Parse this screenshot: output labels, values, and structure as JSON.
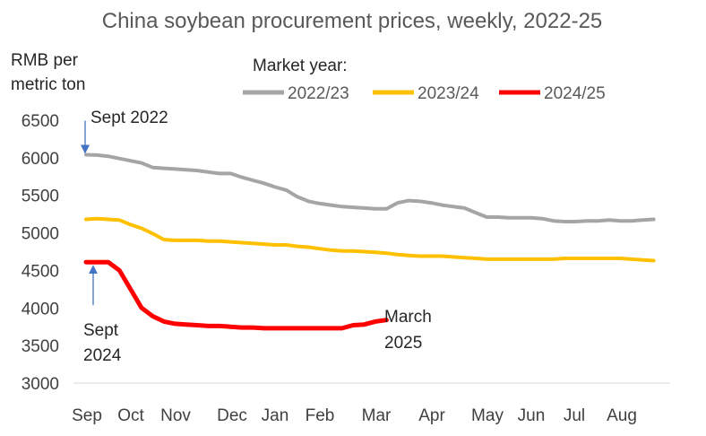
{
  "chart_data": {
    "type": "line",
    "title": "China soybean procurement prices, weekly, 2022-25",
    "ylabel": [
      "RMB per",
      "metric ton"
    ],
    "legend_title": "Market year:",
    "legend_position": "top",
    "ylim": [
      3000,
      6500
    ],
    "yticks": [
      3000,
      3500,
      4000,
      4500,
      5000,
      5500,
      6000,
      6500
    ],
    "grid": false,
    "month_labels": [
      "Sep",
      "Oct",
      "Nov",
      "Dec",
      "Jan",
      "Feb",
      "Mar",
      "Apr",
      "May",
      "Jun",
      "Jul",
      "Aug"
    ],
    "x_unit": "week of market year",
    "xlim": [
      0,
      52
    ],
    "series": [
      {
        "name": "2022/23",
        "color": "#A5A5A5",
        "points": [
          [
            0,
            6040
          ],
          [
            1,
            6035
          ],
          [
            2,
            6020
          ],
          [
            3,
            5990
          ],
          [
            4,
            5960
          ],
          [
            5,
            5930
          ],
          [
            6,
            5870
          ],
          [
            7,
            5860
          ],
          [
            8,
            5850
          ],
          [
            9,
            5840
          ],
          [
            10,
            5830
          ],
          [
            11,
            5810
          ],
          [
            12,
            5790
          ],
          [
            13,
            5790
          ],
          [
            14,
            5740
          ],
          [
            15,
            5700
          ],
          [
            16,
            5660
          ],
          [
            17,
            5610
          ],
          [
            18,
            5570
          ],
          [
            19,
            5480
          ],
          [
            20,
            5420
          ],
          [
            21,
            5390
          ],
          [
            22,
            5370
          ],
          [
            23,
            5350
          ],
          [
            24,
            5340
          ],
          [
            25,
            5330
          ],
          [
            26,
            5320
          ],
          [
            27,
            5320
          ],
          [
            28,
            5400
          ],
          [
            29,
            5430
          ],
          [
            30,
            5420
          ],
          [
            31,
            5400
          ],
          [
            32,
            5370
          ],
          [
            33,
            5350
          ],
          [
            34,
            5330
          ],
          [
            35,
            5270
          ],
          [
            36,
            5210
          ],
          [
            37,
            5210
          ],
          [
            38,
            5200
          ],
          [
            39,
            5200
          ],
          [
            40,
            5200
          ],
          [
            41,
            5190
          ],
          [
            42,
            5160
          ],
          [
            43,
            5150
          ],
          [
            44,
            5150
          ],
          [
            45,
            5160
          ],
          [
            46,
            5160
          ],
          [
            47,
            5170
          ],
          [
            48,
            5160
          ],
          [
            49,
            5160
          ],
          [
            50,
            5170
          ],
          [
            51,
            5180
          ]
        ]
      },
      {
        "name": "2023/24",
        "color": "#FFC000",
        "points": [
          [
            0,
            5180
          ],
          [
            1,
            5190
          ],
          [
            2,
            5180
          ],
          [
            3,
            5170
          ],
          [
            4,
            5110
          ],
          [
            5,
            5060
          ],
          [
            6,
            4990
          ],
          [
            7,
            4910
          ],
          [
            8,
            4900
          ],
          [
            9,
            4900
          ],
          [
            10,
            4900
          ],
          [
            11,
            4890
          ],
          [
            12,
            4890
          ],
          [
            13,
            4880
          ],
          [
            14,
            4870
          ],
          [
            15,
            4860
          ],
          [
            16,
            4850
          ],
          [
            17,
            4840
          ],
          [
            18,
            4840
          ],
          [
            19,
            4820
          ],
          [
            20,
            4810
          ],
          [
            21,
            4790
          ],
          [
            22,
            4770
          ],
          [
            23,
            4760
          ],
          [
            24,
            4760
          ],
          [
            25,
            4750
          ],
          [
            26,
            4740
          ],
          [
            27,
            4730
          ],
          [
            28,
            4710
          ],
          [
            29,
            4700
          ],
          [
            30,
            4690
          ],
          [
            31,
            4690
          ],
          [
            32,
            4690
          ],
          [
            33,
            4680
          ],
          [
            34,
            4670
          ],
          [
            35,
            4660
          ],
          [
            36,
            4650
          ],
          [
            37,
            4650
          ],
          [
            38,
            4650
          ],
          [
            39,
            4650
          ],
          [
            40,
            4650
          ],
          [
            41,
            4650
          ],
          [
            42,
            4650
          ],
          [
            43,
            4660
          ],
          [
            44,
            4660
          ],
          [
            45,
            4660
          ],
          [
            46,
            4660
          ],
          [
            47,
            4660
          ],
          [
            48,
            4660
          ],
          [
            49,
            4650
          ],
          [
            50,
            4640
          ],
          [
            51,
            4630
          ]
        ]
      },
      {
        "name": "2024/25",
        "color": "#FF0000",
        "points": [
          [
            0,
            4610
          ],
          [
            1,
            4610
          ],
          [
            2,
            4610
          ],
          [
            3,
            4500
          ],
          [
            4,
            4250
          ],
          [
            5,
            4000
          ],
          [
            6,
            3890
          ],
          [
            7,
            3820
          ],
          [
            8,
            3790
          ],
          [
            9,
            3780
          ],
          [
            10,
            3770
          ],
          [
            11,
            3760
          ],
          [
            12,
            3760
          ],
          [
            13,
            3750
          ],
          [
            14,
            3740
          ],
          [
            15,
            3740
          ],
          [
            16,
            3730
          ],
          [
            17,
            3730
          ],
          [
            18,
            3730
          ],
          [
            19,
            3730
          ],
          [
            20,
            3730
          ],
          [
            21,
            3730
          ],
          [
            22,
            3730
          ],
          [
            23,
            3730
          ],
          [
            24,
            3770
          ],
          [
            25,
            3780
          ],
          [
            26,
            3820
          ],
          [
            27,
            3840
          ]
        ]
      }
    ],
    "annotations": [
      {
        "lines": [
          "Sept 2022"
        ],
        "series": "2022/23",
        "x": 0,
        "y": 6040,
        "arrow": "down"
      },
      {
        "lines": [
          "Sept",
          "2024"
        ],
        "series": "2024/25",
        "x": 0,
        "y": 4610,
        "arrow": "up"
      },
      {
        "lines": [
          "March",
          "2025"
        ],
        "series": "2024/25",
        "x": 27,
        "y": 3840,
        "arrow": "none"
      }
    ]
  }
}
